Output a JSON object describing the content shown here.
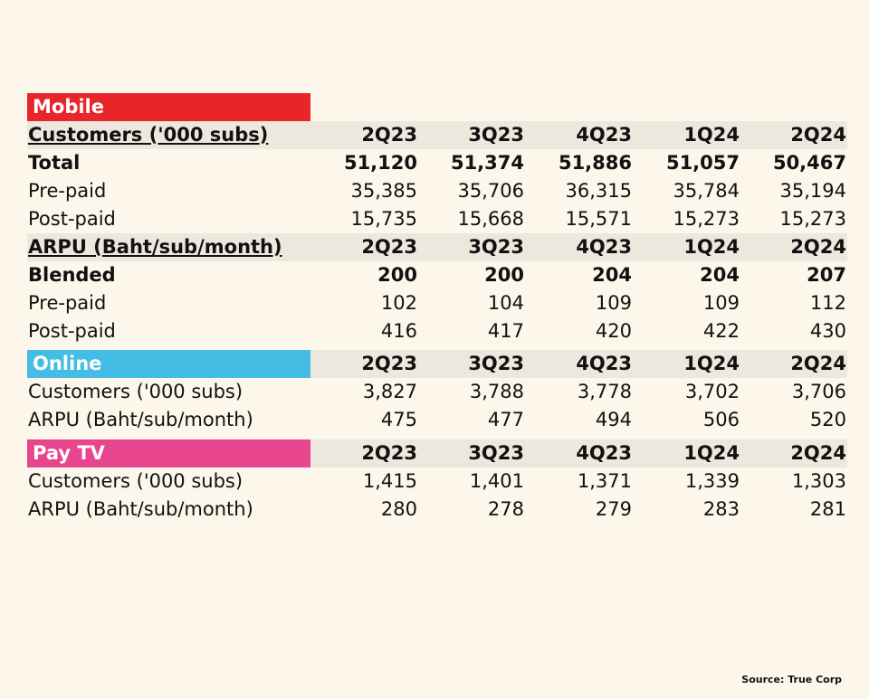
{
  "colors": {
    "background": "#fdf6ea",
    "band": "#ede8dd",
    "mobile": "#e8262a",
    "online": "#43bde3",
    "paytv": "#e8458f"
  },
  "quarters": [
    "2Q23",
    "3Q23",
    "4Q23",
    "1Q24",
    "2Q24"
  ],
  "mobile": {
    "title": "Mobile",
    "customers_header": "Customers ('000 subs)",
    "total": {
      "label": "Total",
      "values": [
        "51,120",
        "51,374",
        "51,886",
        "51,057",
        "50,467"
      ]
    },
    "prepaid": {
      "label": "Pre-paid",
      "values": [
        "35,385",
        "35,706",
        "36,315",
        "35,784",
        "35,194"
      ]
    },
    "postpaid": {
      "label": "Post-paid",
      "values": [
        "15,735",
        "15,668",
        "15,571",
        "15,273",
        "15,273"
      ]
    },
    "arpu_header": "ARPU (Baht/sub/month)",
    "blended": {
      "label": "Blended",
      "values": [
        "200",
        "200",
        "204",
        "204",
        "207"
      ]
    },
    "arpu_prepaid": {
      "label": "Pre-paid",
      "values": [
        "102",
        "104",
        "109",
        "109",
        "112"
      ]
    },
    "arpu_postpaid": {
      "label": "Post-paid",
      "values": [
        "416",
        "417",
        "420",
        "422",
        "430"
      ]
    }
  },
  "online": {
    "title": "Online",
    "customers": {
      "label": "Customers ('000 subs)",
      "values": [
        "3,827",
        "3,788",
        "3,778",
        "3,702",
        "3,706"
      ]
    },
    "arpu": {
      "label": "ARPU (Baht/sub/month)",
      "values": [
        "475",
        "477",
        "494",
        "506",
        "520"
      ]
    }
  },
  "paytv": {
    "title": "Pay TV",
    "customers": {
      "label": "Customers ('000 subs)",
      "values": [
        "1,415",
        "1,401",
        "1,371",
        "1,339",
        "1,303"
      ]
    },
    "arpu": {
      "label": "ARPU (Baht/sub/month)",
      "values": [
        "280",
        "278",
        "279",
        "283",
        "281"
      ]
    }
  },
  "source": "Source: True Corp"
}
